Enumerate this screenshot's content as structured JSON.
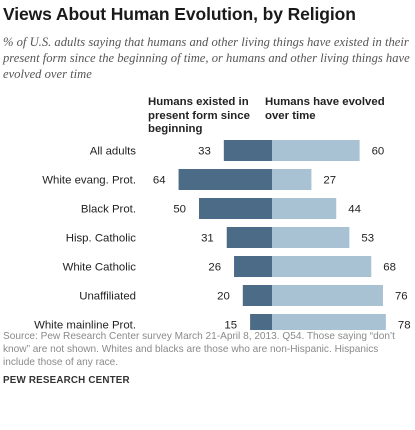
{
  "chart_data": {
    "type": "bar",
    "title": "Views About Human Evolution, by Religion",
    "subtitle": "% of U.S. adults saying that humans and other living things have existed in their present form since the beginning of time, or humans and other living things have evolved over time",
    "categories": [
      "All adults",
      "White evang. Prot.",
      "Black Prot.",
      "Hisp. Catholic",
      "White Catholic",
      "Unaffiliated",
      "White mainline Prot."
    ],
    "series": [
      {
        "name": "Humans existed in present form since beginning",
        "values": [
          33,
          64,
          50,
          31,
          26,
          20,
          15
        ],
        "color": "#4b6b86"
      },
      {
        "name": "Humans have evolved over time",
        "values": [
          60,
          27,
          44,
          53,
          68,
          76,
          78
        ],
        "color": "#a9c2d3"
      }
    ],
    "source": "Source: Pew Research Center survey March 21-April 8, 2013. Q54. Those saying “don’t know” are not shown. Whites and blacks are those who are non-Hispanic. Hispanics include those of any race.",
    "credit": "PEW RESEARCH CENTER"
  }
}
